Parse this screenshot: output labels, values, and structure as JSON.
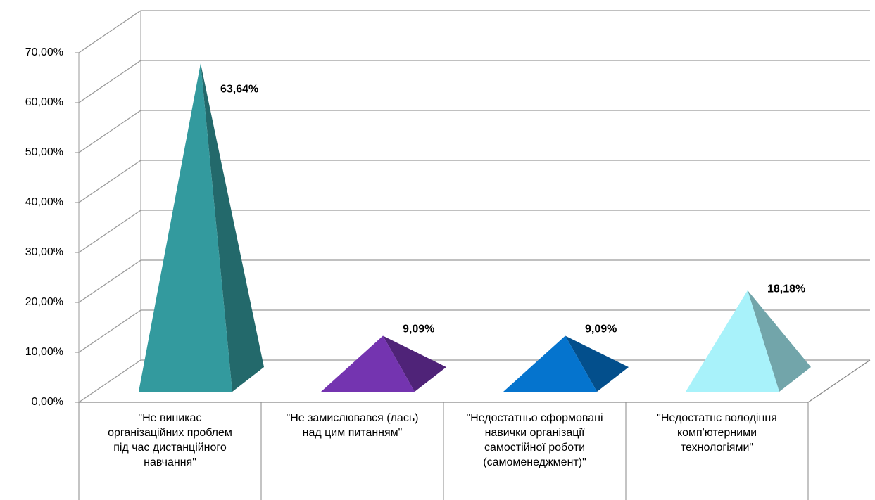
{
  "chart_data": {
    "type": "pyramid3d",
    "categories": [
      "\"Не виникає організаційних проблем  під час дистанційного навчання\"",
      "\"Не замислювався (лась) над цим питанням\"",
      "\"Недостатньо сформовані навички організації самостійної роботи (самоменеджмент)\"",
      "\"Недостатнє володіння комп'ютерними технологіями\""
    ],
    "values": [
      63.64,
      9.09,
      9.09,
      18.18
    ],
    "value_labels": [
      "63,64%",
      "9,09%",
      "9,09%",
      "18,18%"
    ],
    "colors": [
      "#339a9e",
      "#7434b0",
      "#0574ce",
      "#a8f2fa"
    ],
    "ylim": [
      0,
      70
    ],
    "yticks": [
      {
        "value": 0,
        "label": "0,00%"
      },
      {
        "value": 10,
        "label": "10,00%"
      },
      {
        "value": 20,
        "label": "20,00%"
      },
      {
        "value": 30,
        "label": "30,00%"
      },
      {
        "value": 40,
        "label": "40,00%"
      },
      {
        "value": 50,
        "label": "50,00%"
      },
      {
        "value": 60,
        "label": "60,00%"
      },
      {
        "value": 70,
        "label": "70,00%"
      }
    ],
    "grid": true
  }
}
